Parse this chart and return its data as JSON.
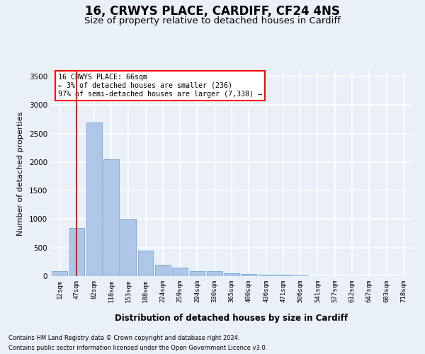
{
  "title1": "16, CRWYS PLACE, CARDIFF, CF24 4NS",
  "title2": "Size of property relative to detached houses in Cardiff",
  "xlabel": "Distribution of detached houses by size in Cardiff",
  "ylabel": "Number of detached properties",
  "annotation_title": "16 CRWYS PLACE: 66sqm",
  "annotation_line2": "← 3% of detached houses are smaller (236)",
  "annotation_line3": "97% of semi-detached houses are larger (7,338) →",
  "footnote1": "Contains HM Land Registry data © Crown copyright and database right 2024.",
  "footnote2": "Contains public sector information licensed under the Open Government Licence v3.0.",
  "categories": [
    "12sqm",
    "47sqm",
    "82sqm",
    "118sqm",
    "153sqm",
    "188sqm",
    "224sqm",
    "259sqm",
    "294sqm",
    "330sqm",
    "365sqm",
    "400sqm",
    "436sqm",
    "471sqm",
    "506sqm",
    "541sqm",
    "577sqm",
    "612sqm",
    "647sqm",
    "683sqm",
    "718sqm"
  ],
  "values": [
    82,
    850,
    2700,
    2050,
    1000,
    450,
    200,
    150,
    82,
    82,
    55,
    40,
    25,
    20,
    8,
    5,
    3,
    2,
    1,
    1,
    1
  ],
  "bar_color": "#aec6e8",
  "bar_edge_color": "#5b9bd5",
  "vline_x": 1.0,
  "vline_color": "red",
  "ylim": [
    0,
    3600
  ],
  "yticks": [
    0,
    500,
    1000,
    1500,
    2000,
    2500,
    3000,
    3500
  ],
  "bg_color": "#eaf0f8",
  "plot_bg_color": "#eaf0f8",
  "grid_color": "#ffffff",
  "annotation_box_color": "white",
  "annotation_box_edge": "red",
  "title1_fontsize": 12,
  "title2_fontsize": 9.5
}
